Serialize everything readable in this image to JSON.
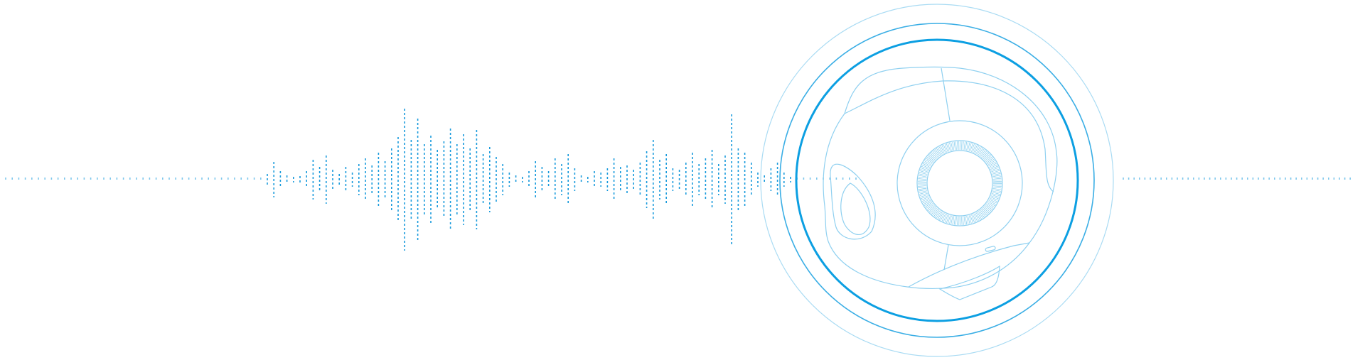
{
  "waveform": {
    "color_strong": "#1a9bdc",
    "color_soft": "#7cc6ec",
    "left_levels": [
      0.01,
      0.01,
      0.01,
      0.01,
      0.01,
      0.01,
      0.01,
      0.01,
      0.01,
      0.01,
      0.01,
      0.01,
      0.01,
      0.01,
      0.01,
      0.01,
      0.01,
      0.01,
      0.01,
      0.01,
      0.01,
      0.01,
      0.01,
      0.01,
      0.01,
      0.01,
      0.01,
      0.01,
      0.01,
      0.01,
      0.01,
      0.01,
      0.01,
      0.01,
      0.01,
      0.01,
      0.01,
      0.01,
      0.01,
      0.02,
      0.08,
      0.25,
      0.12,
      0.06,
      0.04,
      0.05,
      0.12,
      0.28,
      0.18,
      0.34,
      0.14,
      0.08,
      0.18,
      0.1,
      0.22,
      0.3,
      0.2,
      0.38,
      0.26,
      0.44,
      0.6,
      1.0,
      0.56,
      0.86,
      0.5,
      0.62,
      0.42,
      0.54,
      0.72,
      0.5,
      0.64,
      0.44,
      0.7,
      0.36,
      0.46,
      0.32,
      0.22,
      0.1,
      0.06,
      0.04,
      0.12,
      0.26,
      0.18,
      0.12,
      0.3,
      0.22,
      0.36,
      0.16,
      0.06,
      0.04,
      0.12,
      0.1,
      0.16,
      0.3,
      0.18,
      0.2,
      0.14,
      0.24,
      0.4,
      0.56,
      0.28,
      0.36,
      0.16,
      0.14,
      0.24,
      0.38,
      0.22,
      0.3,
      0.42,
      0.22,
      0.34,
      0.92,
      0.44,
      0.38,
      0.24,
      0.1,
      0.06,
      0.16,
      0.24,
      0.1,
      0.04,
      0.02,
      0.01,
      0.01,
      0.01,
      0.01,
      0.01,
      0.01,
      0.01,
      0.01,
      0.01
    ],
    "right_levels": [
      0.01,
      0.01,
      0.01,
      0.01,
      0.01,
      0.01,
      0.01,
      0.01,
      0.01,
      0.01,
      0.01,
      0.01,
      0.01,
      0.01,
      0.01,
      0.01,
      0.01,
      0.01,
      0.01,
      0.01,
      0.01,
      0.01,
      0.01,
      0.01,
      0.01,
      0.01,
      0.01,
      0.01,
      0.01,
      0.01,
      0.01,
      0.01,
      0.01,
      0.01,
      0.01,
      0.01,
      0.01,
      0.01,
      0.01,
      0.01,
      0.01,
      0.01,
      0.01
    ]
  },
  "rings": {
    "outer_color": "#a9dbf3",
    "mid_color": "#3aaee5",
    "inner_color": "#0c9fe2"
  },
  "device": {
    "line_color": "#8fd0f0",
    "lens_color": "#5bbbe8",
    "icon": "smart-home-camera-outline-icon"
  }
}
